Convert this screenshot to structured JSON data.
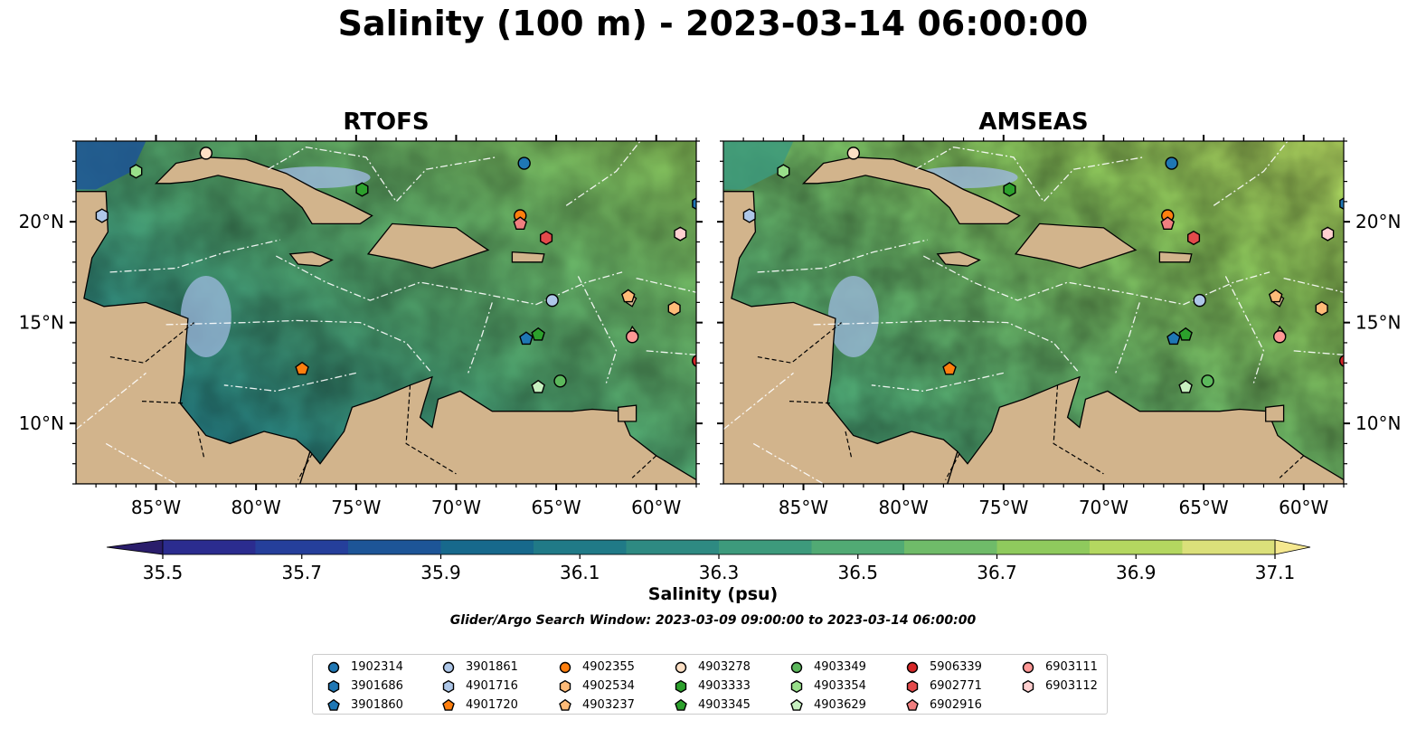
{
  "title": "Salinity (100 m) - 2023-03-14 06:00:00",
  "panels": [
    {
      "name": "RTOFS",
      "palette": "rtofs"
    },
    {
      "name": "AMSEAS",
      "palette": "amseas"
    }
  ],
  "axes": {
    "x_ticks": [
      "85°W",
      "80°W",
      "75°W",
      "70°W",
      "65°W",
      "60°W"
    ],
    "x_tick_values": [
      -85,
      -80,
      -75,
      -70,
      -65,
      -60
    ],
    "y_ticks": [
      "20°N",
      "15°N",
      "10°N"
    ],
    "y_tick_values": [
      20,
      15,
      10
    ],
    "lon_range": [
      -89,
      -58
    ],
    "lat_range": [
      7,
      24
    ]
  },
  "colorbar": {
    "label": "Salinity (psu)",
    "ticks": [
      "35.5",
      "35.7",
      "35.9",
      "36.1",
      "36.3",
      "36.5",
      "36.7",
      "36.9",
      "37.1"
    ],
    "min": 35.5,
    "max": 37.1,
    "extend": "both",
    "colors": [
      "#2a1d6b",
      "#2b2c8f",
      "#253f9b",
      "#1d5597",
      "#17698c",
      "#207a87",
      "#2e8a82",
      "#3d9a7c",
      "#51aa74",
      "#6fbb69",
      "#8fca5d",
      "#b4d760",
      "#dbe07a",
      "#f5e88f"
    ]
  },
  "search_window": "Glider/Argo Search Window: 2023-03-09 09:00:00 to 2023-03-14 06:00:00",
  "legend": [
    {
      "id": "1902314",
      "shape": "circle",
      "color": "#1f77b4"
    },
    {
      "id": "3901686",
      "shape": "hexagon",
      "color": "#1f77b4"
    },
    {
      "id": "3901860",
      "shape": "pentagon",
      "color": "#1f77b4"
    },
    {
      "id": "3901861",
      "shape": "circle",
      "color": "#aec7e8"
    },
    {
      "id": "4901716",
      "shape": "hexagon",
      "color": "#aec7e8"
    },
    {
      "id": "4901720",
      "shape": "pentagon",
      "color": "#ff7f0e"
    },
    {
      "id": "4902355",
      "shape": "circle",
      "color": "#ff7f0e"
    },
    {
      "id": "4902534",
      "shape": "hexagon",
      "color": "#ffbb78"
    },
    {
      "id": "4903237",
      "shape": "pentagon",
      "color": "#ffbb78"
    },
    {
      "id": "4903278",
      "shape": "circle",
      "color": "#fde0c5"
    },
    {
      "id": "4903333",
      "shape": "hexagon",
      "color": "#2ca02c"
    },
    {
      "id": "4903345",
      "shape": "pentagon",
      "color": "#2ca02c"
    },
    {
      "id": "4903349",
      "shape": "circle",
      "color": "#5cb85c"
    },
    {
      "id": "4903354",
      "shape": "hexagon",
      "color": "#98df8a"
    },
    {
      "id": "4903629",
      "shape": "pentagon",
      "color": "#c7f0c0"
    },
    {
      "id": "5906339",
      "shape": "circle",
      "color": "#d62728"
    },
    {
      "id": "6902771",
      "shape": "hexagon",
      "color": "#e34a4b"
    },
    {
      "id": "6902916",
      "shape": "pentagon",
      "color": "#f07f80"
    },
    {
      "id": "6903111",
      "shape": "circle",
      "color": "#ff9896"
    },
    {
      "id": "6903112",
      "shape": "hexagon",
      "color": "#ffd0d0"
    }
  ],
  "floats": [
    {
      "id": "1902314",
      "lon": -66.6,
      "lat": 22.9
    },
    {
      "id": "3901686",
      "lon": -57.9,
      "lat": 20.9
    },
    {
      "id": "3901860",
      "lon": -66.5,
      "lat": 14.2
    },
    {
      "id": "3901861",
      "lon": -65.2,
      "lat": 16.1
    },
    {
      "id": "4901716",
      "lon": -87.7,
      "lat": 20.3
    },
    {
      "id": "4901720",
      "lon": -77.7,
      "lat": 12.7
    },
    {
      "id": "4902355",
      "lon": -66.8,
      "lat": 20.3
    },
    {
      "id": "4902534",
      "lon": -59.1,
      "lat": 15.7
    },
    {
      "id": "4903237",
      "lon": -61.4,
      "lat": 16.3
    },
    {
      "id": "4903278",
      "lon": -82.5,
      "lat": 23.4
    },
    {
      "id": "4903333",
      "lon": -74.7,
      "lat": 21.6
    },
    {
      "id": "4903345",
      "lon": -65.9,
      "lat": 14.4
    },
    {
      "id": "4903349",
      "lon": -64.8,
      "lat": 12.1
    },
    {
      "id": "4903354",
      "lon": -86.0,
      "lat": 22.5
    },
    {
      "id": "4903629",
      "lon": -65.9,
      "lat": 11.8
    },
    {
      "id": "5906339",
      "lon": -57.9,
      "lat": 13.1
    },
    {
      "id": "6902771",
      "lon": -65.5,
      "lat": 19.2
    },
    {
      "id": "6902916",
      "lon": -66.8,
      "lat": 19.9
    },
    {
      "id": "6903111",
      "lon": -61.2,
      "lat": 14.3
    },
    {
      "id": "6903112",
      "lon": -58.8,
      "lat": 19.4
    }
  ]
}
